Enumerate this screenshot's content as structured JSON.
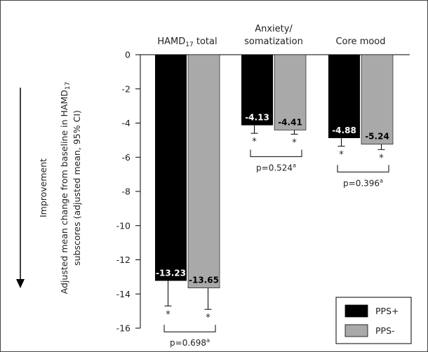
{
  "chart_data": {
    "type": "bar",
    "categories": [
      "HAMD17 total",
      "Anxiety/\nsomatization",
      "Core mood"
    ],
    "category_labels": [
      {
        "main": "HAMD",
        "sub": "17",
        "rest": " total"
      },
      {
        "lines": [
          "Anxiety/",
          "somatization"
        ]
      },
      {
        "lines": [
          "Core mood"
        ]
      }
    ],
    "series": [
      {
        "name": "PPS+",
        "color": "#000000",
        "values": [
          -13.23,
          -4.13,
          -4.88
        ],
        "ci_low": [
          -14.7,
          -4.6,
          -5.35
        ],
        "labels": [
          "-13.23",
          "-4.13",
          "-4.88"
        ]
      },
      {
        "name": "PPS-",
        "color": "#a9a9a9",
        "values": [
          -13.65,
          -4.41,
          -5.24
        ],
        "ci_low": [
          -14.9,
          -4.65,
          -5.55
        ],
        "labels": [
          "-13.65",
          "-4.41",
          "-5.24"
        ]
      }
    ],
    "ylim": [
      -16,
      0
    ],
    "yticks": [
      "0",
      "-2",
      "-4",
      "-6",
      "-8",
      "-10",
      "-12",
      "-14",
      "-16"
    ],
    "ylabel_lines": [
      {
        "pre": "Adjusted mean change from baseline in HAMD",
        "sub": "17",
        "post": ""
      },
      {
        "pre": "subscores (adjusted mean, 95% CI)",
        "sub": "",
        "post": ""
      }
    ],
    "side_label": "Improvement",
    "significance_marker": "*",
    "comparisons": [
      {
        "text": "p=0.698",
        "sup": "a"
      },
      {
        "text": "p=0.524",
        "sup": "a"
      },
      {
        "text": "p=0.396",
        "sup": "a"
      }
    ],
    "legend_position": "bottom-right",
    "grid": false
  }
}
